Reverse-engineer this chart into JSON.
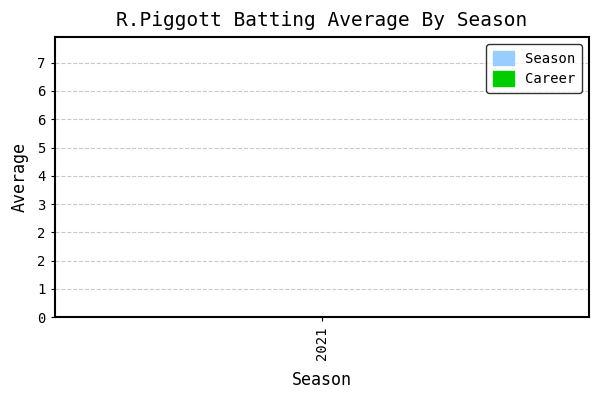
{
  "title": "R.Piggott Batting Average By Season",
  "xlabel": "Season",
  "ylabel": "Average",
  "x_ticks": [
    2021
  ],
  "y_tick_positions": [
    0,
    0.777,
    1.555,
    2.333,
    3.111,
    3.888,
    4.666,
    5.444,
    6.222,
    7.0
  ],
  "y_tick_labels": [
    "0",
    "1",
    "2",
    "2",
    "3",
    "4",
    "5",
    "6",
    "6",
    "7"
  ],
  "ylim": [
    0,
    7.7
  ],
  "xlim": [
    2020.5,
    2021.5
  ],
  "season_bar_color": "#99ccff",
  "career_line_color": "#00cc00",
  "background_color": "#ffffff",
  "plot_bg_color": "#ffffff",
  "grid_color": "#bbbbbb",
  "spine_color": "#000000",
  "legend_labels": [
    "Season",
    "Career"
  ],
  "title_fontsize": 14,
  "label_fontsize": 12,
  "tick_fontsize": 10,
  "font_family": "monospace"
}
